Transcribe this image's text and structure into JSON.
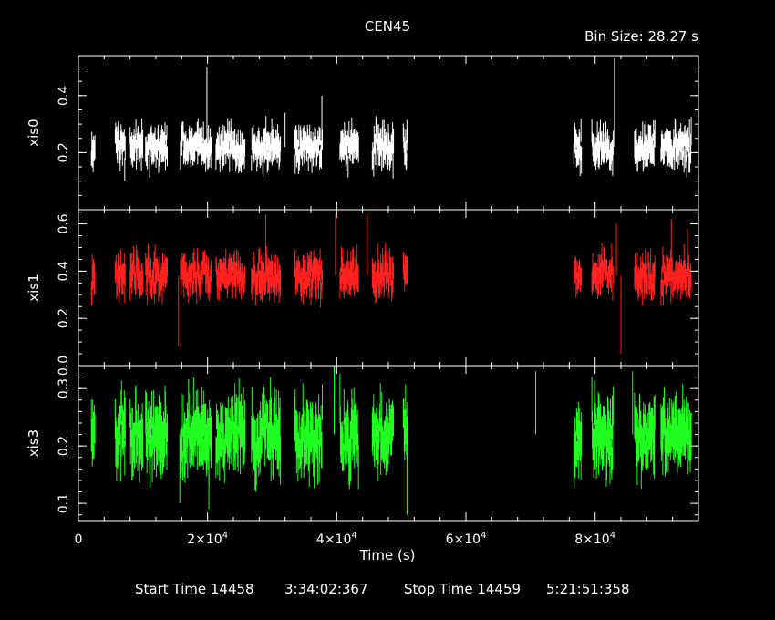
{
  "chart_data": {
    "type": "scatter",
    "title": "CEN45",
    "subtitle": "Bin Size: 28.27 s",
    "xlabel": "Time (s)",
    "xlim": [
      0,
      96000
    ],
    "x_ticks": [
      {
        "value": 0,
        "mant": "0",
        "exp": ""
      },
      {
        "value": 20000,
        "mant": "2×10",
        "exp": "4"
      },
      {
        "value": 40000,
        "mant": "4×10",
        "exp": "4"
      },
      {
        "value": 60000,
        "mant": "6×10",
        "exp": "4"
      },
      {
        "value": 80000,
        "mant": "8×10",
        "exp": "4"
      }
    ],
    "grid": false,
    "segments": [
      [
        2000,
        2600
      ],
      [
        5700,
        7300
      ],
      [
        8000,
        10000
      ],
      [
        10400,
        13800
      ],
      [
        15800,
        20600
      ],
      [
        21300,
        25800
      ],
      [
        26800,
        31300
      ],
      [
        33500,
        37800
      ],
      [
        40500,
        43400
      ],
      [
        45500,
        48800
      ],
      [
        50300,
        51000
      ],
      [
        76700,
        77900
      ],
      [
        79500,
        82800
      ],
      [
        86100,
        89300
      ],
      [
        90200,
        94900
      ]
    ],
    "panels": [
      {
        "name": "xis0",
        "color": "#ffffff",
        "ylim": [
          0.0,
          0.54
        ],
        "yticks": [
          0.2,
          0.4
        ],
        "mean": 0.22,
        "noise": 0.045,
        "seed": 11,
        "spikes": [
          [
            19900,
            0.5
          ],
          [
            32000,
            0.34
          ],
          [
            37700,
            0.4
          ],
          [
            83000,
            0.53
          ],
          [
            48000,
            0.3
          ]
        ]
      },
      {
        "name": "xis1",
        "color": "#ff2020",
        "ylim": [
          0.0,
          0.66
        ],
        "yticks": [
          0.0,
          0.2,
          0.4,
          0.6
        ],
        "mean": 0.38,
        "noise": 0.055,
        "seed": 23,
        "spikes": [
          [
            15500,
            0.08
          ],
          [
            29000,
            0.64
          ],
          [
            39800,
            0.64
          ],
          [
            44700,
            0.64
          ],
          [
            84000,
            0.05
          ],
          [
            83300,
            0.6
          ],
          [
            91800,
            0.62
          ],
          [
            94300,
            0.58
          ],
          [
            22400,
            0.35
          ]
        ]
      },
      {
        "name": "xis3",
        "color": "#20ff20",
        "ylim": [
          0.07,
          0.34
        ],
        "yticks": [
          0.1,
          0.2,
          0.3
        ],
        "mean": 0.22,
        "noise": 0.04,
        "seed": 37,
        "spikes": [
          [
            15700,
            0.1
          ],
          [
            20200,
            0.09
          ],
          [
            29700,
            0.32
          ],
          [
            39600,
            0.34
          ],
          [
            50900,
            0.08
          ],
          [
            70800,
            0.33
          ],
          [
            85800,
            0.33
          ]
        ]
      }
    ]
  },
  "footer": {
    "start_label": "Start Time 14458",
    "start_value": "3:34:02:367",
    "stop_label": "Stop Time 14459",
    "stop_value": "5:21:51:358"
  }
}
